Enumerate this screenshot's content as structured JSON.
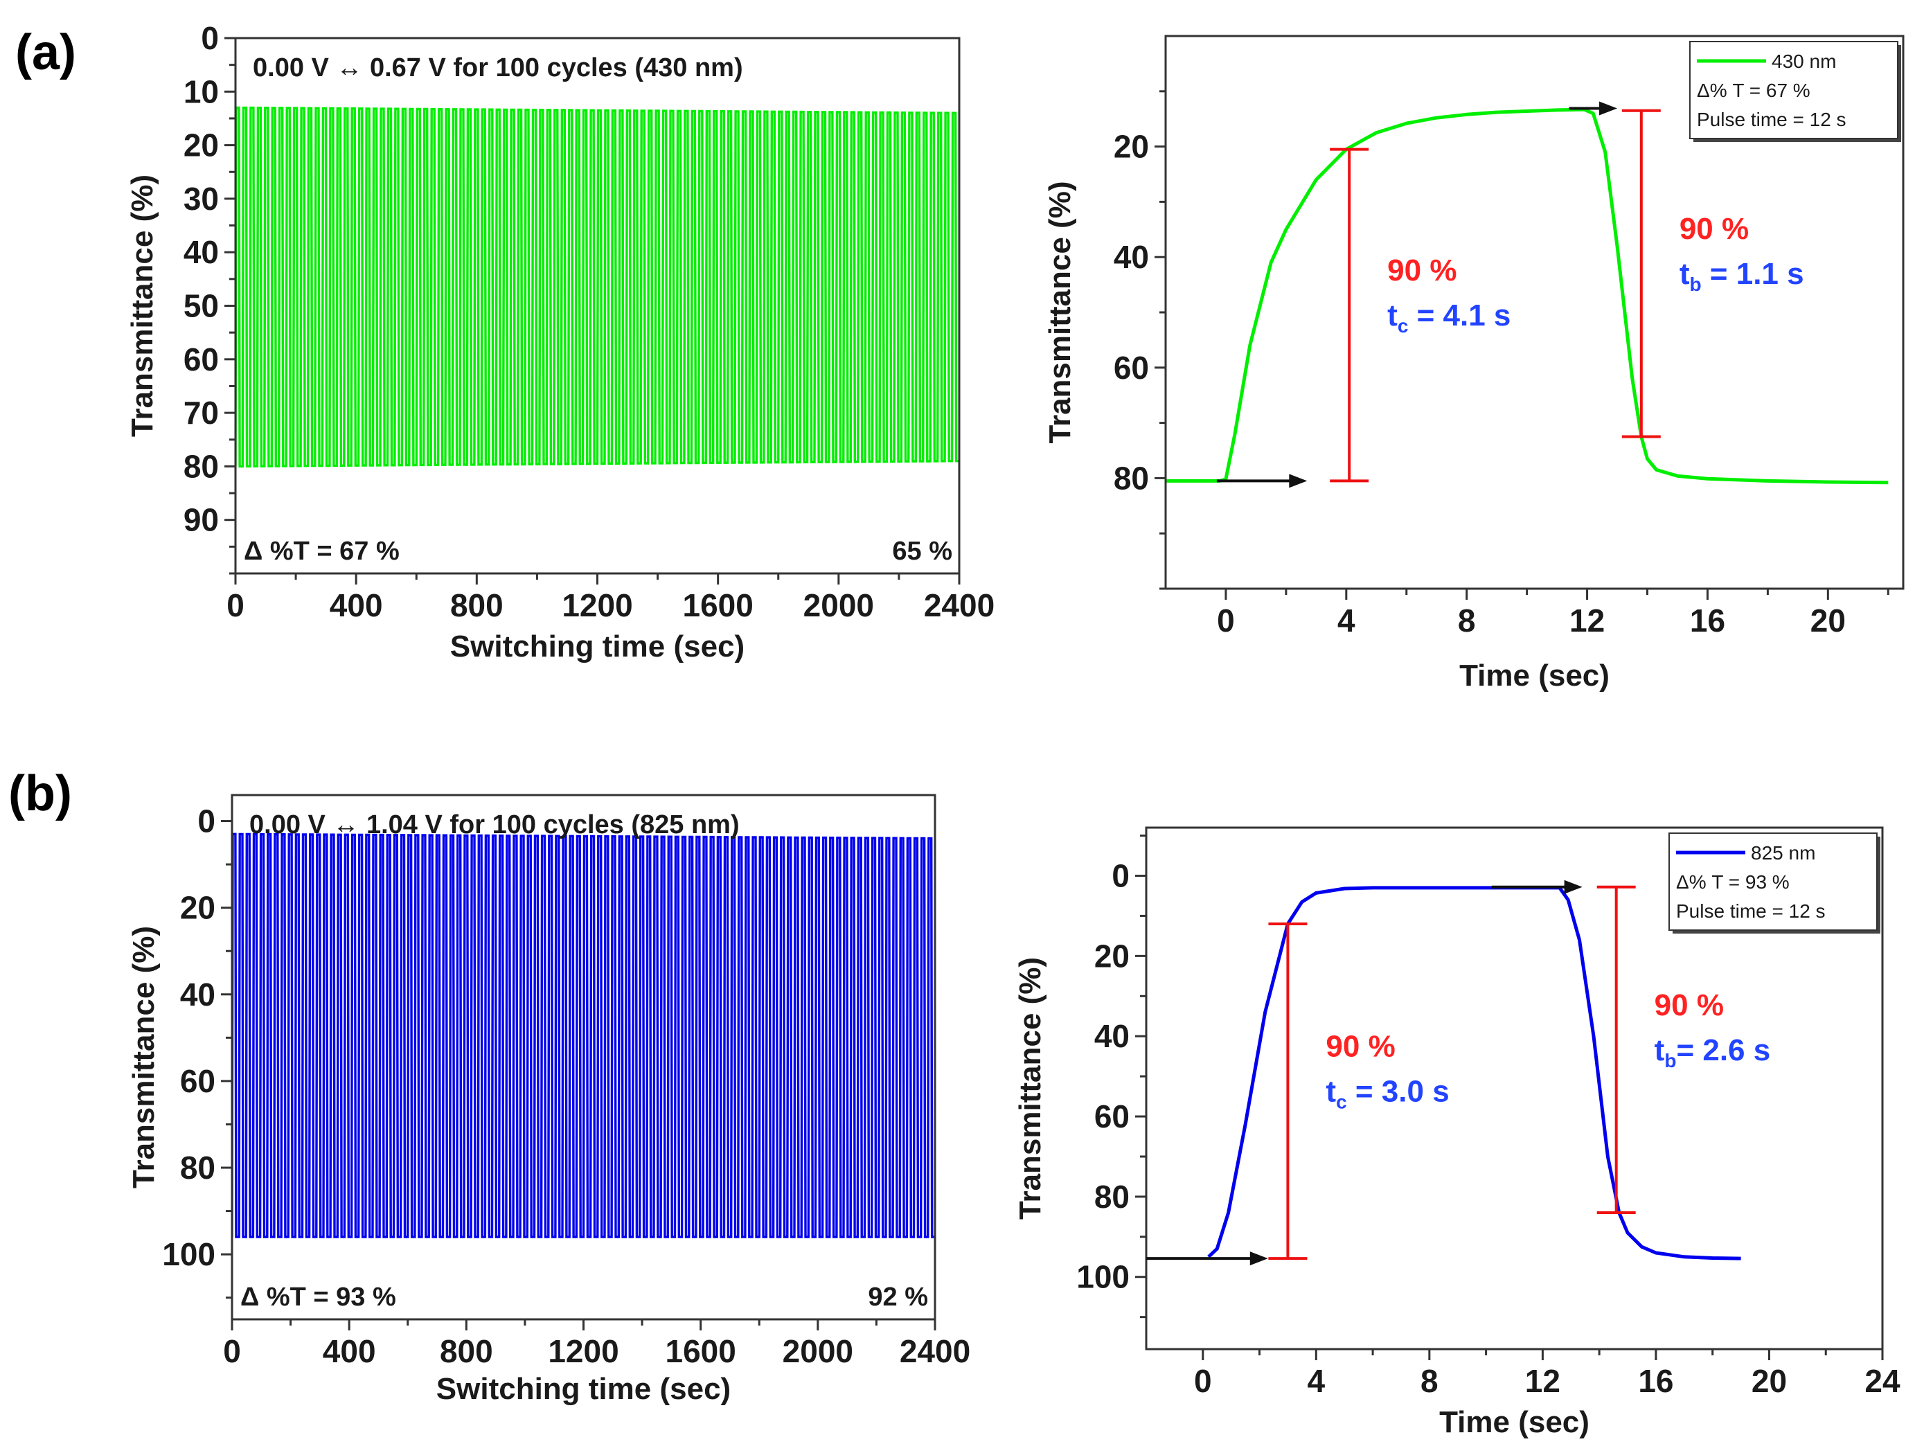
{
  "panel_labels": [
    "(a)",
    "(b)"
  ],
  "colors": {
    "green": "#00ee00",
    "blue": "#0000ee",
    "red": "#ee1111",
    "arrow": "#111111"
  },
  "chart_data": [
    {
      "id": "a-cycles",
      "type": "line",
      "title": "0.00 V ↔ 0.67 V for 100 cycles (430 nm)",
      "xlabel": "Switching time (sec)",
      "ylabel": "Transmittance (%)",
      "xlim": [
        0,
        2400
      ],
      "ylim": [
        0,
        100
      ],
      "y_inverted": true,
      "xticks": [
        0,
        400,
        800,
        1200,
        1600,
        2000,
        2400
      ],
      "yticks": [
        0,
        10,
        20,
        30,
        40,
        50,
        60,
        70,
        80,
        90
      ],
      "series": [
        {
          "name": "430 nm",
          "color": "#00ee00",
          "cycles": 100,
          "start_low": 13,
          "start_high": 80,
          "end_low": 14,
          "end_high": 79
        }
      ],
      "annotations": {
        "start": "Δ %T = 67 %",
        "end": "65 %"
      }
    },
    {
      "id": "a-single",
      "type": "line",
      "xlabel": "Time (sec)",
      "ylabel": "Transmittance (%)",
      "xlim": [
        -2,
        22.5
      ],
      "ylim": [
        0,
        100
      ],
      "y_inverted": true,
      "xticks": [
        0,
        4,
        8,
        12,
        16,
        20
      ],
      "yticks": [
        20,
        40,
        60,
        80
      ],
      "series": [
        {
          "name": "430 nm",
          "color": "#00ee00",
          "x": [
            -2,
            -0.2,
            0,
            0.3,
            0.8,
            1.5,
            2,
            3,
            4,
            5,
            6,
            7,
            8,
            9,
            10,
            11,
            11.9,
            12.2,
            12.6,
            13,
            13.5,
            13.8,
            14,
            14.3,
            15,
            16,
            18,
            20,
            22
          ],
          "y": [
            80.5,
            80.5,
            80.2,
            72,
            56,
            41,
            35,
            26,
            20.5,
            17.5,
            15.8,
            14.8,
            14.2,
            13.8,
            13.6,
            13.4,
            13.3,
            14,
            21,
            38,
            62,
            72.5,
            76.5,
            78.5,
            79.6,
            80.1,
            80.5,
            80.7,
            80.8
          ]
        }
      ],
      "legend": {
        "label": "430 nm",
        "line2": "Δ% T = 67 %",
        "line3": "Pulse time = 12 s"
      },
      "arrows": [
        {
          "from": [
            -0.3,
            80.5
          ],
          "to": [
            2.7,
            80.5
          ]
        },
        {
          "from": [
            11.4,
            13.1
          ],
          "to": [
            13.0,
            13.1
          ]
        }
      ],
      "markers": [
        {
          "x": 4.1,
          "y_top": 20.5,
          "y_bottom": 80.5,
          "pct": "90 %",
          "label": "t",
          "sub": "c",
          "value": " = 4.1 s"
        },
        {
          "x": 13.8,
          "y_top": 13.5,
          "y_bottom": 72.5,
          "pct": "90 %",
          "label": "t",
          "sub": "b",
          "value": " = 1.1 s"
        }
      ]
    },
    {
      "id": "b-cycles",
      "type": "line",
      "title": "0.00 V ↔ 1.04 V for 100 cycles (825 nm)",
      "xlabel": "Switching time (sec)",
      "ylabel": "Transmittance (%)",
      "xlim": [
        0,
        2400
      ],
      "ylim": [
        -6,
        115
      ],
      "y_inverted": true,
      "xticks": [
        0,
        400,
        800,
        1200,
        1600,
        2000,
        2400
      ],
      "yticks": [
        0,
        20,
        40,
        60,
        80,
        100
      ],
      "series": [
        {
          "name": "825 nm",
          "color": "#0000ee",
          "cycles": 100,
          "start_low": 3,
          "start_high": 96,
          "end_low": 4,
          "end_high": 96
        }
      ],
      "annotations": {
        "start": "Δ %T = 93 %",
        "end": "92 %"
      }
    },
    {
      "id": "b-single",
      "type": "line",
      "xlabel": "Time (sec)",
      "ylabel": "Transmittance (%)",
      "xlim": [
        -2,
        24
      ],
      "ylim": [
        -12,
        118
      ],
      "y_inverted": true,
      "xticks": [
        0,
        4,
        8,
        12,
        16,
        20,
        24
      ],
      "yticks": [
        0,
        20,
        40,
        60,
        80,
        100
      ],
      "series": [
        {
          "name": "825 nm",
          "color": "#0000ee",
          "x": [
            0.2,
            0.5,
            0.9,
            1.5,
            2.2,
            3.0,
            3.5,
            4.0,
            5.0,
            6,
            8,
            10,
            12.6,
            12.9,
            13.3,
            13.8,
            14.3,
            14.7,
            15.0,
            15.5,
            16,
            17,
            18,
            19
          ],
          "y": [
            95,
            93,
            84,
            62,
            34,
            12,
            6.5,
            4.3,
            3.2,
            3,
            3,
            3,
            3,
            6,
            16,
            40,
            70,
            84,
            89,
            92.5,
            94,
            95,
            95.3,
            95.4
          ]
        }
      ],
      "legend": {
        "label": "825 nm",
        "line2": "Δ% T = 93 %",
        "line3": "Pulse time = 12 s"
      },
      "arrows": [
        {
          "from": [
            -2,
            95.4
          ],
          "to": [
            2.3,
            95.4
          ]
        },
        {
          "from": [
            10.2,
            2.8
          ],
          "to": [
            13.4,
            2.8
          ]
        }
      ],
      "markers": [
        {
          "x": 3.0,
          "y_top": 12,
          "y_bottom": 95.4,
          "pct": "90 %",
          "label": "t",
          "sub": "c",
          "value": " = 3.0 s"
        },
        {
          "x": 14.6,
          "y_top": 2.8,
          "y_bottom": 84,
          "pct": "90 %",
          "label": "t",
          "sub": "b",
          "value": "= 2.6 s"
        }
      ]
    }
  ]
}
